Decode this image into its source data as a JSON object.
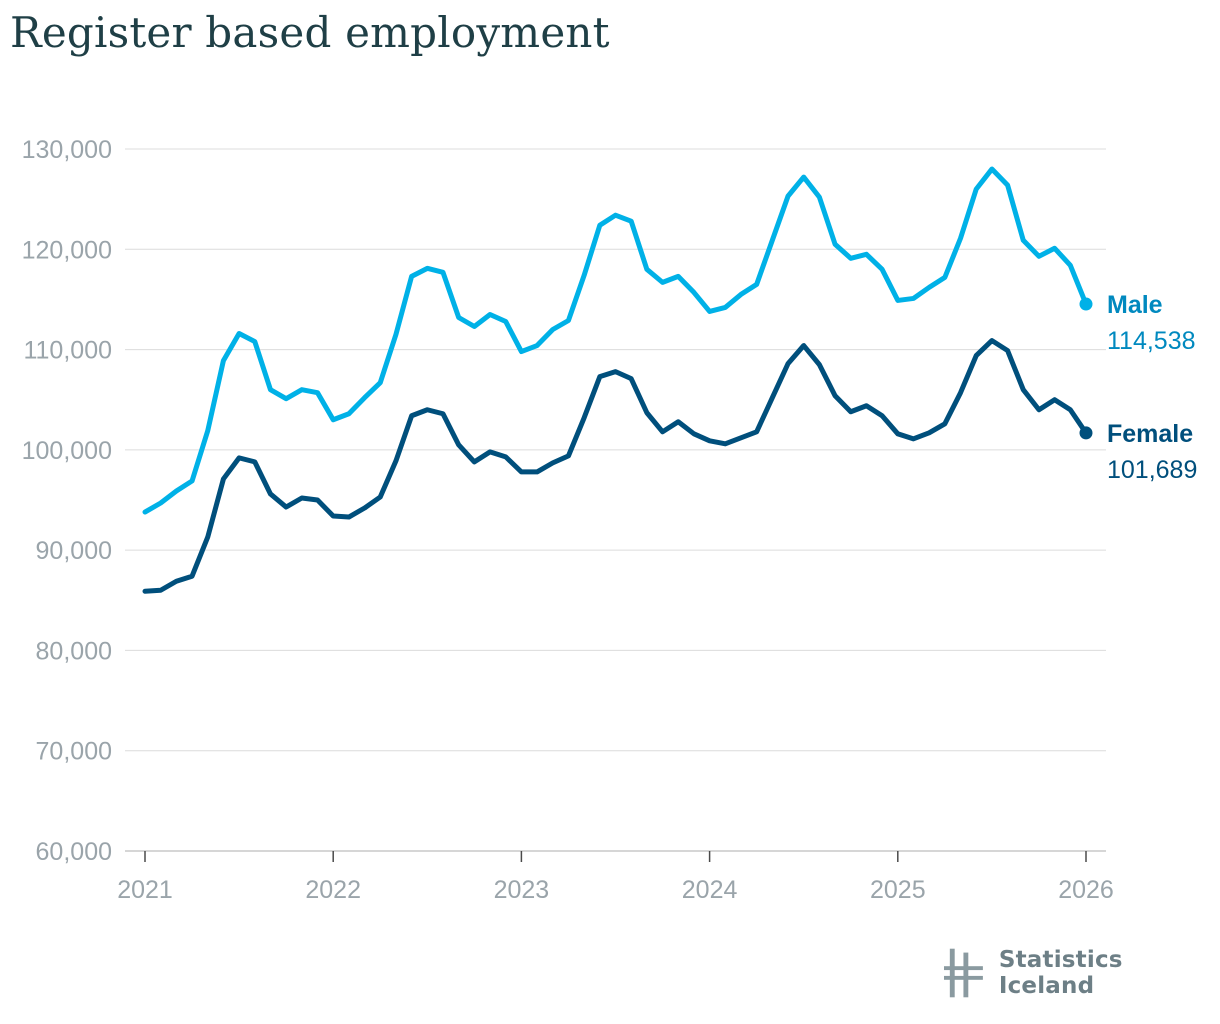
{
  "title": "Register based employment",
  "logo": {
    "text": "Statistics Iceland",
    "icon": "statistics-iceland-logo-icon"
  },
  "colors": {
    "male": "#00b1e7",
    "female": "#004f7c",
    "male_label": "#0089bf",
    "grid": "#dcdcdc",
    "axis_text": "#9aa4aa"
  },
  "chart_data": {
    "type": "line",
    "title": "Register based employment",
    "xlabel": "",
    "ylabel": "",
    "ylim": [
      60000,
      130000
    ],
    "yticks": [
      60000,
      70000,
      80000,
      90000,
      100000,
      110000,
      120000,
      130000
    ],
    "ytick_labels": [
      "60,000",
      "70,000",
      "80,000",
      "90,000",
      "100,000",
      "110,000",
      "120,000",
      "130,000"
    ],
    "xlim": [
      "2021-01",
      "2026-01"
    ],
    "xticks": [
      "2021",
      "2022",
      "2023",
      "2024",
      "2025",
      "2026"
    ],
    "grid": true,
    "legend": "end-of-line labels",
    "x": [
      "2021-01",
      "2021-02",
      "2021-03",
      "2021-04",
      "2021-05",
      "2021-06",
      "2021-07",
      "2021-08",
      "2021-09",
      "2021-10",
      "2021-11",
      "2021-12",
      "2022-01",
      "2022-02",
      "2022-03",
      "2022-04",
      "2022-05",
      "2022-06",
      "2022-07",
      "2022-08",
      "2022-09",
      "2022-10",
      "2022-11",
      "2022-12",
      "2023-01",
      "2023-02",
      "2023-03",
      "2023-04",
      "2023-05",
      "2023-06",
      "2023-07",
      "2023-08",
      "2023-09",
      "2023-10",
      "2023-11",
      "2023-12",
      "2024-01",
      "2024-02",
      "2024-03",
      "2024-04",
      "2024-05",
      "2024-06",
      "2024-07",
      "2024-08",
      "2024-09",
      "2024-10",
      "2024-11",
      "2024-12",
      "2025-01",
      "2025-02",
      "2025-03",
      "2025-04",
      "2025-05",
      "2025-06",
      "2025-07",
      "2025-08",
      "2025-09",
      "2025-10",
      "2025-11",
      "2025-12",
      "2026-01"
    ],
    "series": [
      {
        "name": "Male",
        "last_label": "114,538",
        "values": [
          93800,
          94700,
          95900,
          96900,
          101900,
          108900,
          111600,
          110800,
          106000,
          105100,
          106000,
          105700,
          103000,
          103600,
          105200,
          106700,
          111500,
          117300,
          118100,
          117700,
          113200,
          112300,
          113500,
          112800,
          109800,
          110400,
          112000,
          112900,
          117400,
          122400,
          123400,
          122800,
          118000,
          116700,
          117300,
          115700,
          113800,
          114200,
          115500,
          116500,
          120900,
          125300,
          127200,
          125200,
          120500,
          119100,
          119500,
          118000,
          114900,
          115100,
          116200,
          117200,
          121100,
          126000,
          128000,
          126400,
          120900,
          119300,
          120100,
          118400,
          114538
        ]
      },
      {
        "name": "Female",
        "last_label": "101,689",
        "values": [
          85900,
          86000,
          86900,
          87400,
          91300,
          97100,
          99200,
          98800,
          95600,
          94300,
          95200,
          95000,
          93400,
          93300,
          94200,
          95300,
          98900,
          103400,
          104000,
          103600,
          100500,
          98800,
          99800,
          99300,
          97800,
          97800,
          98700,
          99400,
          103200,
          107300,
          107800,
          107100,
          103700,
          101800,
          102800,
          101600,
          100900,
          100600,
          101200,
          101800,
          105200,
          108600,
          110400,
          108500,
          105400,
          103800,
          104400,
          103400,
          101600,
          101100,
          101700,
          102600,
          105700,
          109400,
          110900,
          109900,
          106000,
          104000,
          105000,
          104000,
          101689
        ]
      }
    ]
  }
}
